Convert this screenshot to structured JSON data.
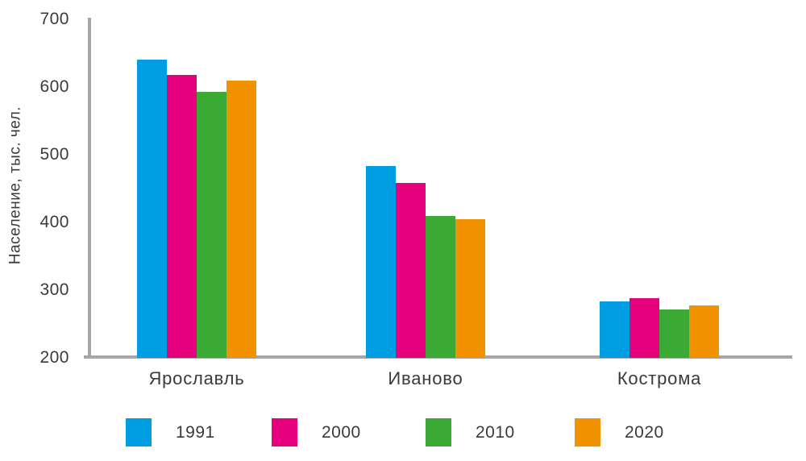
{
  "chart_data": {
    "type": "bar",
    "title": "",
    "xlabel": "",
    "ylabel": "Население, тыс. чел.",
    "categories": [
      "Ярославль",
      "Иваново",
      "Кострома"
    ],
    "series": [
      {
        "name": "1991",
        "color": "#009FE3",
        "values": [
          640,
          483,
          283
        ]
      },
      {
        "name": "2000",
        "color": "#E6007E",
        "values": [
          618,
          458,
          288
        ]
      },
      {
        "name": "2010",
        "color": "#3AAA35",
        "values": [
          593,
          410,
          272
        ]
      },
      {
        "name": "2020",
        "color": "#F39200",
        "values": [
          610,
          405,
          277
        ]
      }
    ],
    "ylim": [
      200,
      700
    ],
    "yticks": [
      700,
      600,
      500,
      400,
      300,
      200
    ],
    "grid": false,
    "legend_position": "bottom"
  },
  "colors": {
    "axis": "#A6A6A6",
    "text": "#3A3A3A",
    "background": "#FFFFFF"
  }
}
